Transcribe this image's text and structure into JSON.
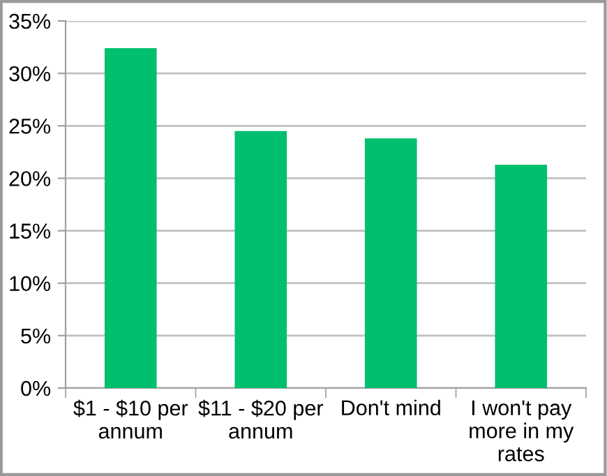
{
  "chart_data": {
    "type": "bar",
    "categories": [
      "$1 - $10 per\nannum",
      "$11 - $20 per\nannum",
      "Don't mind",
      "I won't pay\nmore in my\nrates"
    ],
    "values": [
      32.4,
      24.5,
      23.8,
      21.3
    ],
    "color": "#00bf6f",
    "ylim": [
      0,
      35
    ],
    "yticks": [
      {
        "value": 0,
        "label": "0%"
      },
      {
        "value": 5,
        "label": "5%"
      },
      {
        "value": 10,
        "label": "10%"
      },
      {
        "value": 15,
        "label": "15%"
      },
      {
        "value": 20,
        "label": "20%"
      },
      {
        "value": 25,
        "label": "25%"
      },
      {
        "value": 30,
        "label": "30%"
      },
      {
        "value": 35,
        "label": "35%"
      }
    ],
    "grid": "y",
    "legend": false
  }
}
